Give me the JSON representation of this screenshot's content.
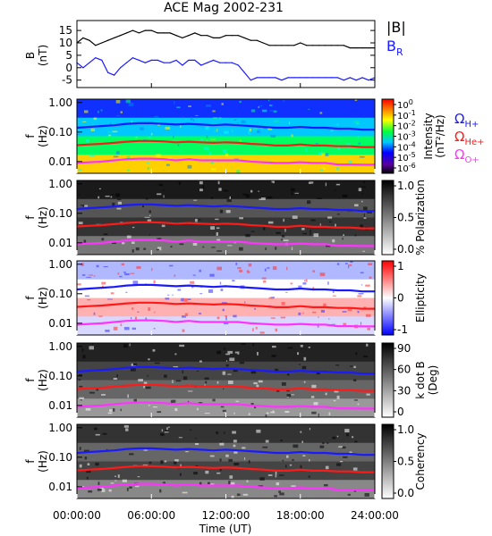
{
  "figure": {
    "title": "ACE Mag 2002-231",
    "xlabel": "Time (UT)",
    "xticks": [
      "00:00:00",
      "06:00:00",
      "12:00:00",
      "18:00:00",
      "24:00:00"
    ]
  },
  "legend_top": {
    "b_mag": "|B|",
    "b_r": "B",
    "b_r_sub": "R",
    "b_mag_color": "#000000",
    "b_r_color": "#1a1aff"
  },
  "legend_cyclotron": [
    {
      "main": "Ω",
      "sub": "H+",
      "color": "#1a1aff"
    },
    {
      "main": "Ω",
      "sub": "He+",
      "color": "#ff1a1a"
    },
    {
      "main": "Ω",
      "sub": "O+",
      "color": "#ff33ff"
    }
  ],
  "chart_data": [
    {
      "type": "line",
      "title": "ACE Mag 2002-231",
      "ylabel_top": "B",
      "ylabel_bottom": "(nT)",
      "yticks": [
        "15",
        "10",
        "5",
        "0",
        "-5"
      ],
      "ylim": [
        -8,
        19
      ],
      "xlim_hours": [
        0,
        24
      ],
      "series": [
        {
          "name": "|B|",
          "color": "#000000",
          "x": [
            0,
            0.5,
            1,
            1.5,
            2,
            2.5,
            3,
            3.5,
            4,
            4.5,
            5,
            5.5,
            6,
            6.5,
            7,
            7.5,
            8,
            8.5,
            9,
            9.5,
            10,
            10.5,
            11,
            11.5,
            12,
            12.5,
            13,
            13.5,
            14,
            14.5,
            15,
            15.5,
            16,
            16.5,
            17,
            17.5,
            18,
            18.5,
            19,
            19.5,
            20,
            20.5,
            21,
            21.5,
            22,
            22.5,
            23,
            23.5,
            24
          ],
          "y": [
            10,
            12,
            11,
            9,
            10,
            11,
            12,
            13,
            14,
            15,
            14,
            15,
            15,
            14,
            14,
            14,
            13,
            12,
            13,
            14,
            13,
            13,
            12,
            12,
            13,
            13,
            13,
            12,
            11,
            11,
            10,
            9,
            9,
            9,
            9,
            9,
            10,
            9,
            9,
            9,
            9,
            9,
            9,
            9,
            8,
            8,
            8,
            8,
            8
          ]
        },
        {
          "name": "BR",
          "color": "#1a1aff",
          "x": [
            0,
            0.5,
            1,
            1.5,
            2,
            2.5,
            3,
            3.5,
            4,
            4.5,
            5,
            5.5,
            6,
            6.5,
            7,
            7.5,
            8,
            8.5,
            9,
            9.5,
            10,
            10.5,
            11,
            11.5,
            12,
            12.5,
            13,
            13.5,
            14,
            14.5,
            15,
            15.5,
            16,
            16.5,
            17,
            17.5,
            18,
            18.5,
            19,
            19.5,
            20,
            20.5,
            21,
            21.5,
            22,
            22.5,
            23,
            23.5,
            24
          ],
          "y": [
            2,
            0,
            2,
            4,
            3,
            -2,
            -3,
            0,
            2,
            4,
            3,
            2,
            3,
            3,
            2,
            2,
            3,
            1,
            3,
            3,
            1,
            2,
            3,
            2,
            2,
            2,
            1,
            -2,
            -5,
            -4,
            -4,
            -4,
            -4,
            -5,
            -4,
            -4,
            -4,
            -4,
            -4,
            -4,
            -4,
            -4,
            -4,
            -5,
            -4,
            -5,
            -4,
            -5,
            -4
          ]
        }
      ]
    },
    {
      "type": "heatmap",
      "quantity": "Intensity",
      "ylabel_top": "f",
      "ylabel_bottom": "(Hz)",
      "yticks": [
        "1.00",
        "0.10",
        "0.01"
      ],
      "colorbar_label_1": "Intensity",
      "colorbar_label_2": "(nT²/Hz)",
      "colorbar_ticks": [
        "10",
        "10",
        "10",
        "10",
        "10",
        "10",
        "10"
      ],
      "colorbar_exps": [
        "0",
        "-1",
        "-2",
        "-3",
        "-4",
        "-5",
        "-6"
      ],
      "log_frequency": true,
      "ylim_hz": [
        0.004,
        1.3
      ]
    },
    {
      "type": "heatmap",
      "quantity": "% Polarization",
      "ylabel_top": "f",
      "ylabel_bottom": "(Hz)",
      "yticks": [
        "1.00",
        "0.10",
        "0.01"
      ],
      "colorbar_label_1": "% Polarization",
      "colorbar_label_2": "",
      "colorbar_ticks": [
        "1.0",
        "0.5",
        "0.0"
      ],
      "colorbar_exps": [],
      "log_frequency": true,
      "ylim_hz": [
        0.004,
        1.3
      ]
    },
    {
      "type": "heatmap",
      "quantity": "Ellipticity",
      "ylabel_top": "f",
      "ylabel_bottom": "(Hz)",
      "yticks": [
        "1.00",
        "0.10",
        "0.01"
      ],
      "colorbar_label_1": "Ellipticity",
      "colorbar_label_2": "",
      "colorbar_ticks": [
        "1",
        "0",
        "-1"
      ],
      "colorbar_exps": [],
      "log_frequency": true,
      "ylim_hz": [
        0.004,
        1.3
      ]
    },
    {
      "type": "heatmap",
      "quantity": "k dot B",
      "ylabel_top": "f",
      "ylabel_bottom": "(Hz)",
      "yticks": [
        "1.00",
        "0.10",
        "0.01"
      ],
      "colorbar_label_1": "k dot B",
      "colorbar_label_2": "(Deg)",
      "colorbar_ticks": [
        "90",
        "60",
        "30",
        "0"
      ],
      "colorbar_exps": [],
      "log_frequency": true,
      "ylim_hz": [
        0.004,
        1.3
      ]
    },
    {
      "type": "heatmap",
      "quantity": "Coherency",
      "ylabel_top": "f",
      "ylabel_bottom": "(Hz)",
      "yticks": [
        "1.00",
        "0.10",
        "0.01"
      ],
      "colorbar_label_1": "Coherency",
      "colorbar_label_2": "",
      "colorbar_ticks": [
        "1.0",
        "0.5",
        "0.0"
      ],
      "colorbar_exps": [],
      "log_frequency": true,
      "ylim_hz": [
        0.004,
        1.3
      ]
    }
  ],
  "cyclotron_lines": {
    "x_hours": [
      0,
      1,
      2,
      3,
      4,
      5,
      6,
      7,
      8,
      9,
      10,
      11,
      12,
      13,
      14,
      15,
      16,
      17,
      18,
      19,
      20,
      21,
      22,
      23,
      24
    ],
    "h_plus_hz": [
      0.14,
      0.15,
      0.16,
      0.17,
      0.19,
      0.2,
      0.2,
      0.19,
      0.18,
      0.19,
      0.18,
      0.17,
      0.18,
      0.17,
      0.16,
      0.15,
      0.14,
      0.14,
      0.15,
      0.14,
      0.14,
      0.13,
      0.13,
      0.12,
      0.12
    ],
    "he_plus_hz": [
      0.036,
      0.038,
      0.04,
      0.043,
      0.047,
      0.05,
      0.05,
      0.048,
      0.045,
      0.047,
      0.045,
      0.043,
      0.045,
      0.043,
      0.04,
      0.038,
      0.035,
      0.035,
      0.038,
      0.035,
      0.035,
      0.033,
      0.033,
      0.031,
      0.031
    ],
    "o_plus_hz": [
      0.009,
      0.0095,
      0.01,
      0.011,
      0.012,
      0.0125,
      0.0125,
      0.012,
      0.011,
      0.012,
      0.011,
      0.011,
      0.011,
      0.011,
      0.01,
      0.0095,
      0.009,
      0.009,
      0.0095,
      0.009,
      0.009,
      0.008,
      0.008,
      0.0078,
      0.0078
    ]
  }
}
